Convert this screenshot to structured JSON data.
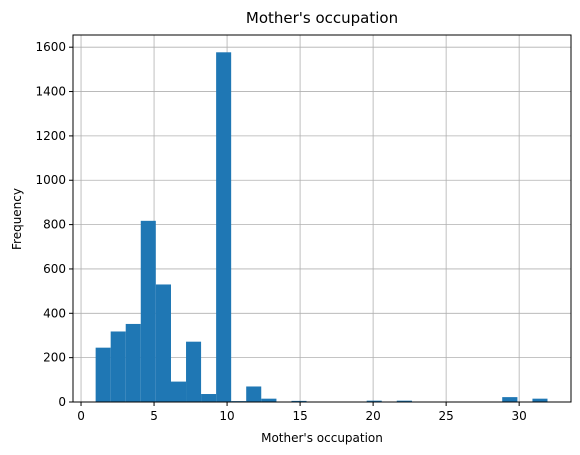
{
  "chart_data": {
    "type": "bar",
    "title": "Mother's occupation",
    "xlabel": "Mother's occupation",
    "ylabel": "Frequency",
    "xlim": [
      -0.55,
      33.55
    ],
    "ylim": [
      0,
      1655
    ],
    "grid": true,
    "bar_color": "#1f77b4",
    "xticks": [
      0,
      5,
      10,
      15,
      20,
      25,
      30
    ],
    "yticks": [
      0,
      200,
      400,
      600,
      800,
      1000,
      1200,
      1400,
      1600
    ],
    "bins": [
      {
        "x0": 1.0,
        "x1": 2.03,
        "count": 245
      },
      {
        "x0": 2.03,
        "x1": 3.06,
        "count": 318
      },
      {
        "x0": 3.06,
        "x1": 4.09,
        "count": 352
      },
      {
        "x0": 4.09,
        "x1": 5.12,
        "count": 817
      },
      {
        "x0": 5.12,
        "x1": 6.16,
        "count": 530
      },
      {
        "x0": 6.16,
        "x1": 7.19,
        "count": 92
      },
      {
        "x0": 7.19,
        "x1": 8.22,
        "count": 272
      },
      {
        "x0": 8.22,
        "x1": 9.25,
        "count": 36
      },
      {
        "x0": 9.25,
        "x1": 10.28,
        "count": 1577
      },
      {
        "x0": 10.28,
        "x1": 11.31,
        "count": 4
      },
      {
        "x0": 11.31,
        "x1": 12.34,
        "count": 70
      },
      {
        "x0": 12.34,
        "x1": 13.38,
        "count": 15
      },
      {
        "x0": 13.38,
        "x1": 14.41,
        "count": 2
      },
      {
        "x0": 14.41,
        "x1": 15.44,
        "count": 5
      },
      {
        "x0": 15.44,
        "x1": 16.47,
        "count": 2
      },
      {
        "x0": 16.47,
        "x1": 17.5,
        "count": 2
      },
      {
        "x0": 17.5,
        "x1": 18.53,
        "count": 2
      },
      {
        "x0": 18.53,
        "x1": 19.56,
        "count": 2
      },
      {
        "x0": 19.56,
        "x1": 20.59,
        "count": 6
      },
      {
        "x0": 20.59,
        "x1": 21.62,
        "count": 2
      },
      {
        "x0": 21.62,
        "x1": 22.66,
        "count": 6
      },
      {
        "x0": 22.66,
        "x1": 23.69,
        "count": 2
      },
      {
        "x0": 23.69,
        "x1": 24.72,
        "count": 2
      },
      {
        "x0": 24.72,
        "x1": 25.75,
        "count": 2
      },
      {
        "x0": 25.75,
        "x1": 26.78,
        "count": 2
      },
      {
        "x0": 26.78,
        "x1": 27.81,
        "count": 2
      },
      {
        "x0": 27.81,
        "x1": 28.84,
        "count": 2
      },
      {
        "x0": 28.84,
        "x1": 29.88,
        "count": 22
      },
      {
        "x0": 29.88,
        "x1": 30.91,
        "count": 2
      },
      {
        "x0": 30.91,
        "x1": 31.94,
        "count": 15
      }
    ]
  }
}
